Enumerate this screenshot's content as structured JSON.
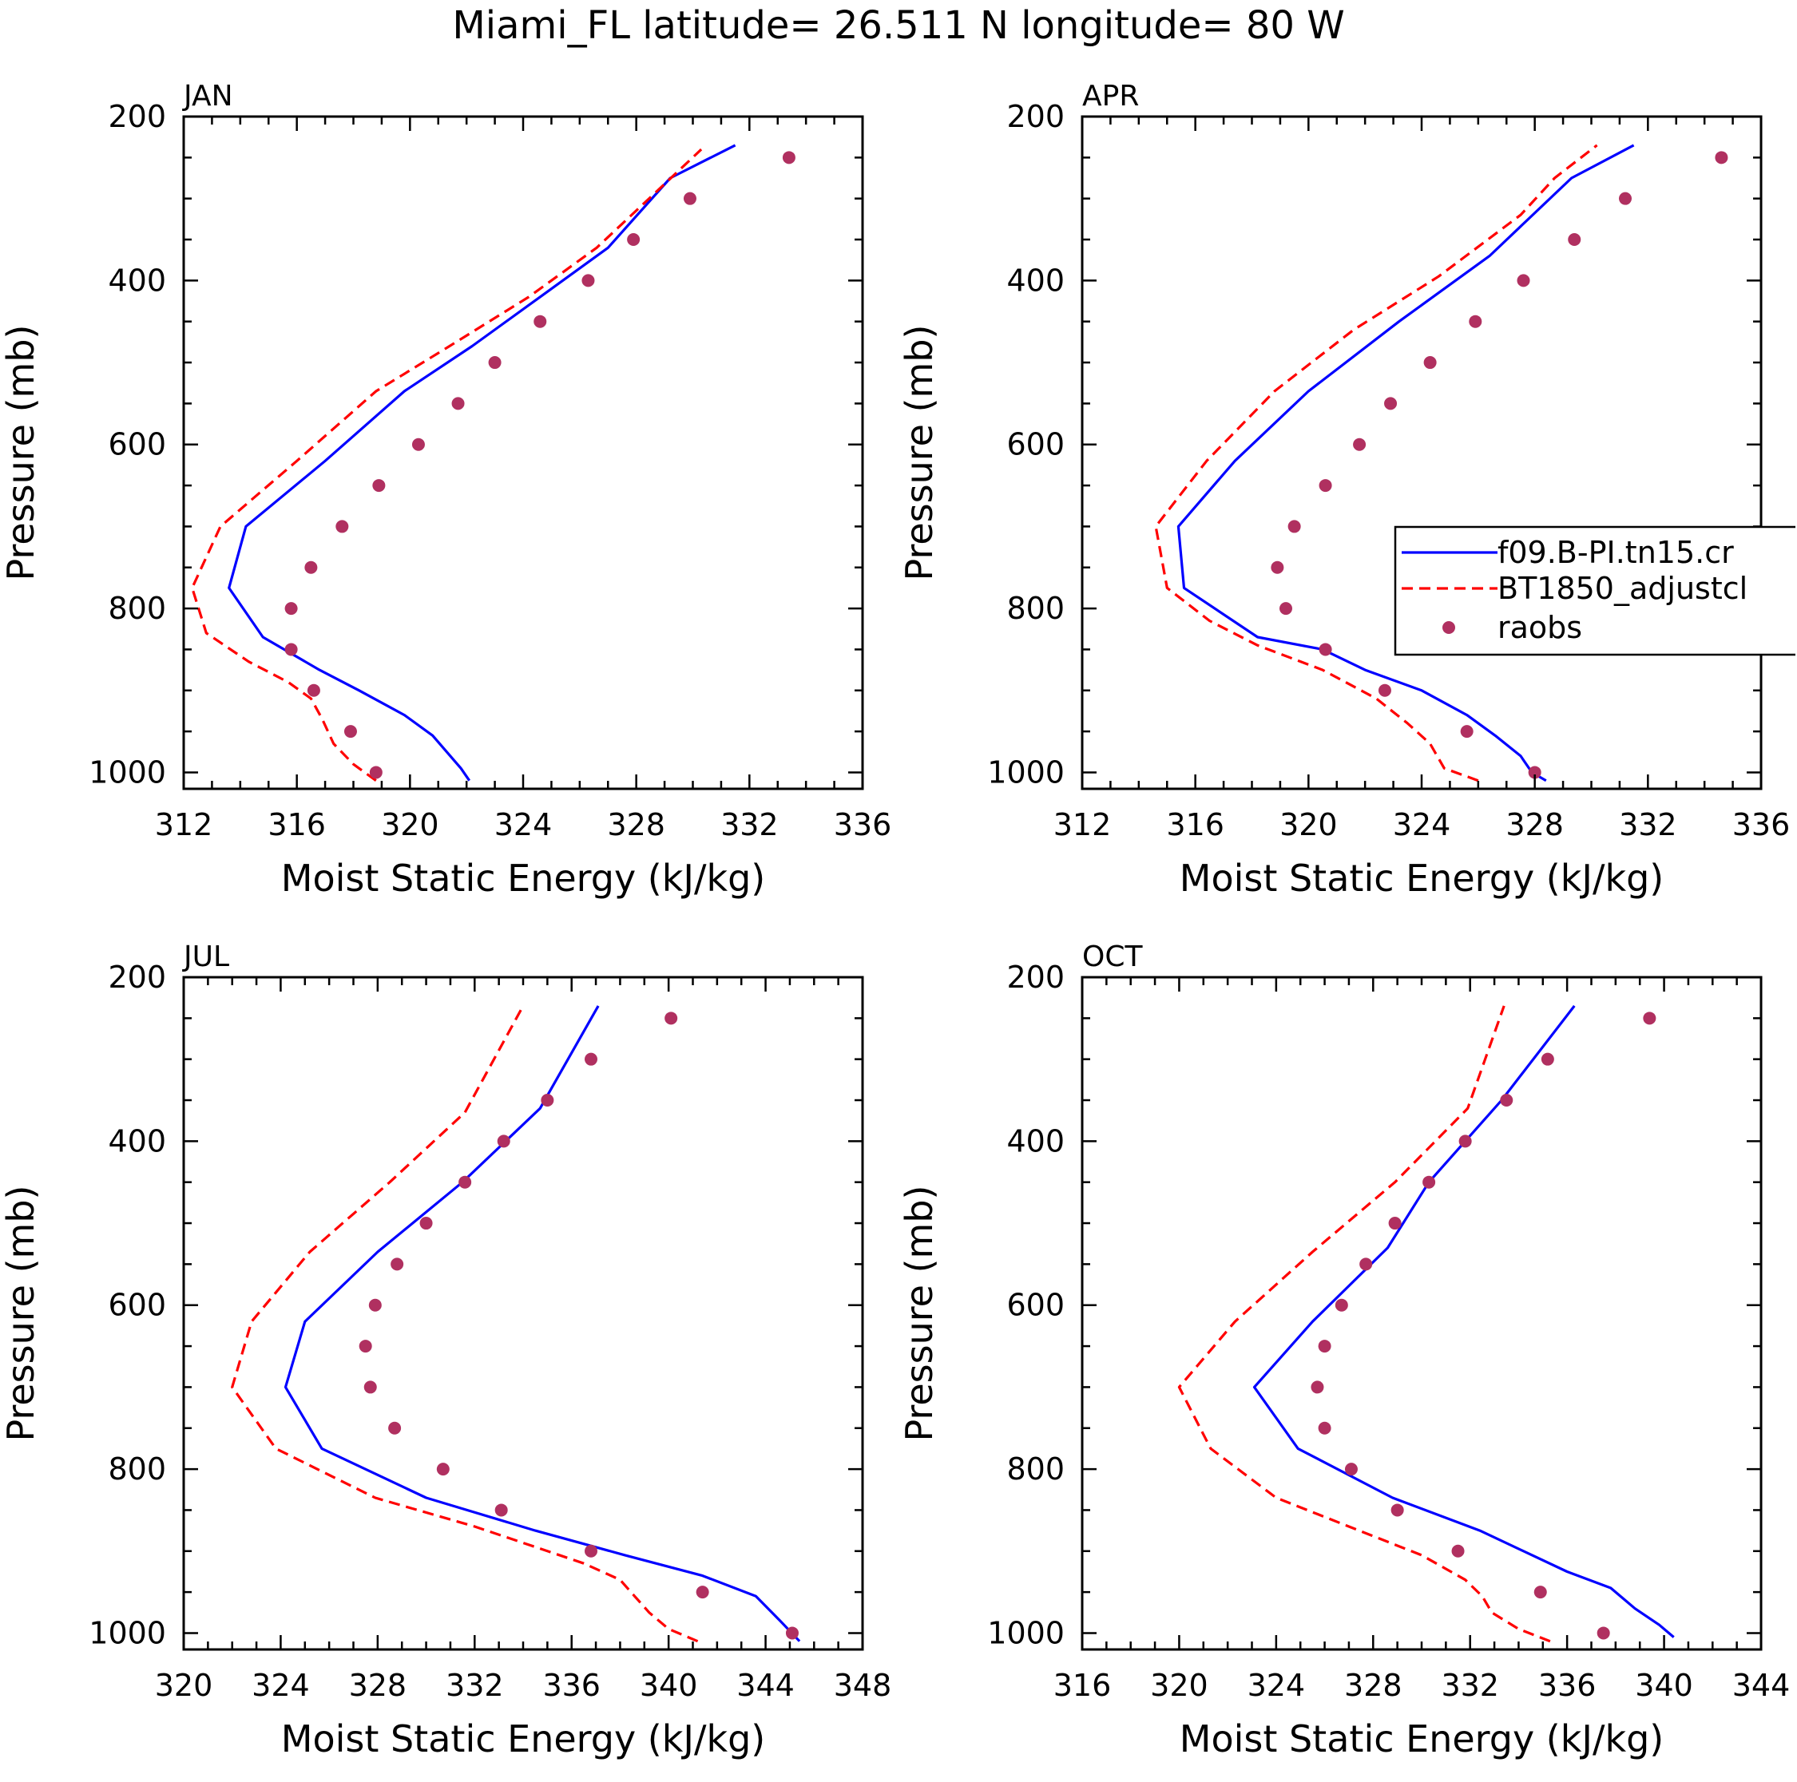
{
  "suptitle": "Miami_FL  latitude= 26.511 N longitude= 80 W",
  "legend": {
    "entries": [
      {
        "label": "f09.B-PI.tn15.cr",
        "color": "#0000ff",
        "style": "solid"
      },
      {
        "label": "BT1850_adjustcl",
        "color": "#ff0000",
        "style": "dashed"
      },
      {
        "label": "raobs",
        "color": "#b03060",
        "style": "dots"
      }
    ]
  },
  "chart_data": [
    {
      "type": "line",
      "title": "JAN",
      "xlabel": "Moist Static Energy (kJ/kg)",
      "ylabel": "Pressure (mb)",
      "xlim": [
        312,
        336
      ],
      "ylim": [
        1020,
        200
      ],
      "xticks": [
        312,
        316,
        320,
        324,
        328,
        332,
        336
      ],
      "yticks": [
        200,
        400,
        600,
        800,
        1000
      ],
      "series": [
        {
          "name": "f09.B-PI.tn15.cr",
          "x": [
            322.1,
            321.8,
            320.8,
            319.8,
            318.2,
            316.8,
            314.8,
            313.6,
            314.2,
            317.0,
            319.8,
            322.2,
            324.6,
            327.0,
            329.2,
            331.5
          ],
          "y": [
            1010,
            995,
            955,
            930,
            900,
            875,
            835,
            775,
            700,
            620,
            535,
            480,
            420,
            360,
            275,
            235
          ]
        },
        {
          "name": "BT1850_adjustcl",
          "x": [
            318.8,
            318.0,
            317.3,
            316.9,
            316.5,
            315.7,
            314.3,
            312.8,
            312.3,
            313.3,
            316.0,
            318.8,
            321.4,
            324.2,
            326.6,
            328.3,
            330.3
          ],
          "y": [
            1010,
            990,
            965,
            935,
            910,
            890,
            865,
            830,
            775,
            700,
            620,
            535,
            480,
            420,
            360,
            305,
            240
          ]
        },
        {
          "name": "raobs",
          "x": [
            318.8,
            317.9,
            316.6,
            315.8,
            315.8,
            316.5,
            317.6,
            318.9,
            320.3,
            321.7,
            323.0,
            324.6,
            326.3,
            327.9,
            329.9,
            333.4
          ],
          "y": [
            1000,
            950,
            900,
            850,
            800,
            750,
            700,
            650,
            600,
            550,
            500,
            450,
            400,
            350,
            300,
            250
          ]
        }
      ]
    },
    {
      "type": "line",
      "title": "APR",
      "xlabel": "Moist Static Energy (kJ/kg)",
      "ylabel": "Pressure (mb)",
      "xlim": [
        312,
        336
      ],
      "ylim": [
        1020,
        200
      ],
      "xticks": [
        312,
        316,
        320,
        324,
        328,
        332,
        336
      ],
      "yticks": [
        200,
        400,
        600,
        800,
        1000
      ],
      "series": [
        {
          "name": "f09.B-PI.tn15.cr",
          "x": [
            328.4,
            327.9,
            327.5,
            326.6,
            325.6,
            324.0,
            322.0,
            320.5,
            318.2,
            315.6,
            315.4,
            317.4,
            320.0,
            323.2,
            326.4,
            329.3,
            331.5
          ],
          "y": [
            1010,
            1000,
            980,
            955,
            930,
            900,
            875,
            850,
            835,
            775,
            700,
            620,
            535,
            450,
            370,
            275,
            235
          ]
        },
        {
          "name": "BT1850_adjustcl",
          "x": [
            326.0,
            324.8,
            324.3,
            323.5,
            322.4,
            320.5,
            318.2,
            316.5,
            315.0,
            314.6,
            316.4,
            318.8,
            321.6,
            324.6,
            327.5,
            328.7,
            330.2
          ],
          "y": [
            1010,
            995,
            965,
            940,
            910,
            875,
            845,
            815,
            775,
            700,
            620,
            535,
            460,
            395,
            320,
            275,
            235
          ]
        },
        {
          "name": "raobs",
          "x": [
            328.0,
            325.6,
            322.7,
            320.6,
            319.2,
            318.9,
            319.5,
            320.6,
            321.8,
            322.9,
            324.3,
            325.9,
            327.6,
            329.4,
            331.2,
            334.6
          ],
          "y": [
            1000,
            950,
            900,
            850,
            800,
            750,
            700,
            650,
            600,
            550,
            500,
            450,
            400,
            350,
            300,
            250
          ]
        }
      ]
    },
    {
      "type": "line",
      "title": "JUL",
      "xlabel": "Moist Static Energy (kJ/kg)",
      "ylabel": "Pressure (mb)",
      "xlim": [
        320,
        348
      ],
      "ylim": [
        1020,
        200
      ],
      "xticks": [
        320,
        324,
        328,
        332,
        336,
        340,
        344,
        348
      ],
      "yticks": [
        200,
        400,
        600,
        800,
        1000
      ],
      "series": [
        {
          "name": "f09.B-PI.tn15.cr",
          "x": [
            345.4,
            344.6,
            343.6,
            341.4,
            338.2,
            334.5,
            330.0,
            325.7,
            324.2,
            325.0,
            328.0,
            331.5,
            334.7,
            337.1
          ],
          "y": [
            1010,
            985,
            955,
            930,
            905,
            875,
            835,
            775,
            700,
            620,
            535,
            450,
            360,
            235
          ]
        },
        {
          "name": "BT1850_adjustcl",
          "x": [
            341.2,
            340.0,
            339.2,
            338.6,
            338.0,
            336.5,
            334.5,
            332.0,
            327.9,
            323.8,
            322.0,
            322.8,
            325.2,
            328.5,
            331.6,
            334.0
          ],
          "y": [
            1010,
            995,
            975,
            955,
            935,
            915,
            895,
            870,
            835,
            775,
            700,
            620,
            535,
            450,
            365,
            235
          ]
        },
        {
          "name": "raobs",
          "x": [
            345.1,
            341.4,
            336.8,
            333.1,
            330.7,
            328.7,
            327.7,
            327.5,
            327.9,
            328.8,
            330.0,
            331.6,
            333.2,
            335.0,
            336.8,
            340.1
          ],
          "y": [
            1000,
            950,
            900,
            850,
            800,
            750,
            700,
            650,
            600,
            550,
            500,
            450,
            400,
            350,
            300,
            250
          ]
        }
      ]
    },
    {
      "type": "line",
      "title": "OCT",
      "xlabel": "Moist Static Energy (kJ/kg)",
      "ylabel": "Pressure (mb)",
      "xlim": [
        316,
        344
      ],
      "ylim": [
        1020,
        200
      ],
      "xticks": [
        316,
        320,
        324,
        328,
        332,
        336,
        340,
        344
      ],
      "yticks": [
        200,
        400,
        600,
        800,
        1000
      ],
      "series": [
        {
          "name": "f09.B-PI.tn15.cr",
          "x": [
            340.4,
            339.8,
            338.8,
            337.8,
            336.0,
            332.4,
            328.8,
            324.9,
            323.1,
            325.5,
            328.6,
            330.3,
            333.3,
            336.3
          ],
          "y": [
            1005,
            990,
            970,
            945,
            925,
            875,
            835,
            775,
            700,
            620,
            530,
            450,
            350,
            235
          ]
        },
        {
          "name": "BT1850_adjustcl",
          "x": [
            335.3,
            334.0,
            332.9,
            332.5,
            331.8,
            330.0,
            327.0,
            324.0,
            321.3,
            320.0,
            322.3,
            325.5,
            328.9,
            331.9,
            333.4
          ],
          "y": [
            1010,
            995,
            975,
            955,
            935,
            905,
            870,
            835,
            775,
            700,
            620,
            535,
            450,
            360,
            235
          ]
        },
        {
          "name": "raobs",
          "x": [
            337.5,
            334.9,
            331.5,
            329.0,
            327.1,
            326.0,
            325.7,
            326.0,
            326.7,
            327.7,
            328.9,
            330.3,
            331.8,
            333.5,
            335.2,
            339.4
          ],
          "y": [
            1000,
            950,
            900,
            850,
            800,
            750,
            700,
            650,
            600,
            550,
            500,
            450,
            400,
            350,
            300,
            250
          ]
        }
      ]
    }
  ]
}
